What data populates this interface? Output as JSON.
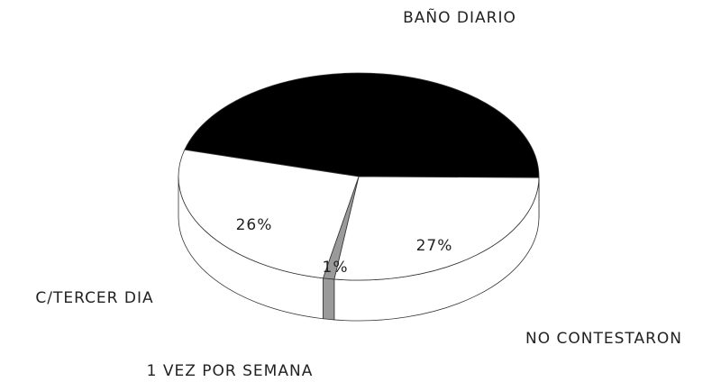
{
  "chart_data": {
    "type": "pie",
    "categories": [
      "BAÑO DIARIO",
      "NO CONTESTARON",
      "1 VEZ POR SEMANA",
      "C/TERCER DIA"
    ],
    "values": [
      46,
      27,
      1,
      26
    ],
    "value_labels": [
      null,
      "27%",
      "1%",
      "26%"
    ],
    "colors": [
      "#000000",
      "#ffffff",
      "#9a9a9a",
      "#ffffff"
    ]
  }
}
